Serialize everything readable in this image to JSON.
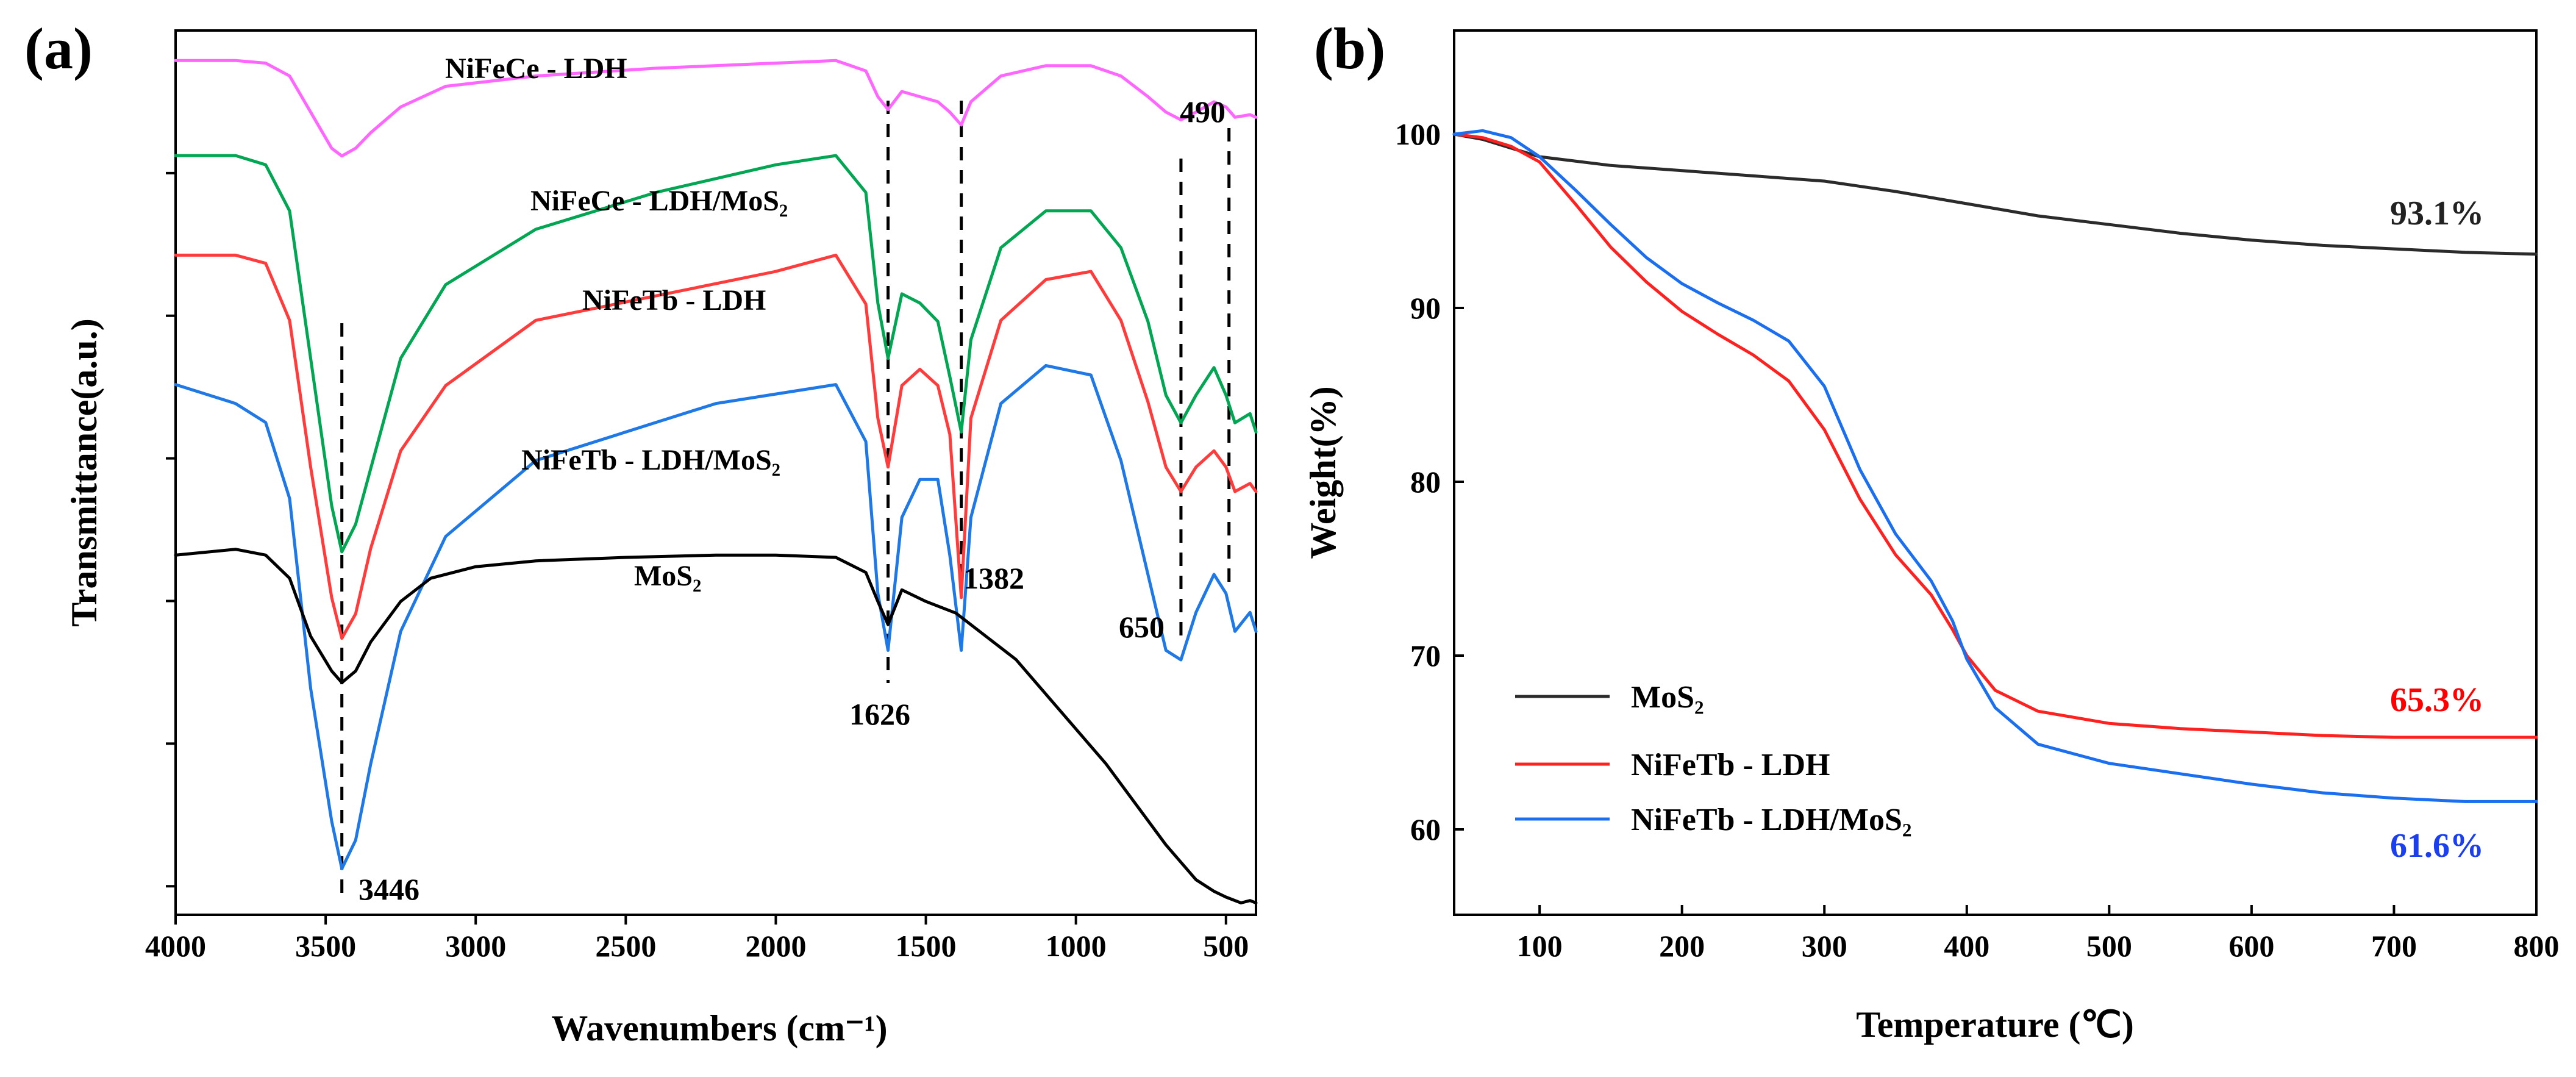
{
  "chart_data": [
    {
      "panel": "(a)",
      "type": "line",
      "title": "",
      "xlabel": "Wavenumbers (cm⁻¹)",
      "ylabel": "Transmittance(a.u.)",
      "xlim": [
        4000,
        400
      ],
      "x_ticks": [
        4000,
        3500,
        3000,
        2500,
        2000,
        1500,
        1000,
        500
      ],
      "y_ticks_labeled": false,
      "peaks": [
        {
          "label": "3446",
          "x": 3446
        },
        {
          "label": "1626",
          "x": 1626
        },
        {
          "label": "1382",
          "x": 1382
        },
        {
          "label": "650",
          "x": 650
        },
        {
          "label": "490",
          "x": 490
        }
      ],
      "series": [
        {
          "name": "NiFeCe - LDH",
          "color": "#ff66ff",
          "x": [
            4000,
            3800,
            3700,
            3620,
            3550,
            3480,
            3446,
            3400,
            3350,
            3250,
            3100,
            2800,
            2400,
            2000,
            1800,
            1700,
            1660,
            1626,
            1580,
            1520,
            1460,
            1420,
            1382,
            1350,
            1250,
            1100,
            950,
            850,
            760,
            700,
            650,
            600,
            540,
            500,
            470,
            420,
            400
          ],
          "y": [
            94,
            94,
            93.5,
            91,
            84,
            77,
            75.5,
            77,
            80,
            85,
            89,
            91,
            92.5,
            93.5,
            94,
            92,
            87,
            84.5,
            88,
            87,
            86,
            84,
            81.5,
            86,
            91,
            93,
            93,
            91,
            87,
            84,
            82.5,
            84,
            86,
            85,
            83,
            83.5,
            83
          ]
        },
        {
          "name": "NiFeCe - LDH/MoS₂",
          "color": "#00a651",
          "x": [
            4000,
            3800,
            3700,
            3620,
            3550,
            3480,
            3446,
            3400,
            3350,
            3250,
            3100,
            2800,
            2400,
            2000,
            1800,
            1700,
            1660,
            1626,
            1580,
            1520,
            1460,
            1420,
            1382,
            1350,
            1250,
            1100,
            950,
            850,
            760,
            700,
            650,
            600,
            540,
            500,
            470,
            420,
            400
          ],
          "y": [
            87,
            87,
            86.5,
            84,
            76,
            68,
            65.5,
            67,
            70,
            76,
            80,
            83,
            85,
            86.5,
            87,
            85,
            79,
            76,
            79.5,
            79,
            78,
            75,
            72,
            77,
            82,
            84,
            84,
            82,
            78,
            74,
            72.5,
            74,
            75.5,
            74,
            72.5,
            73,
            72
          ]
        },
        {
          "name": "NiFeTb - LDH",
          "color": "#ff3b3b",
          "x": [
            4000,
            3800,
            3700,
            3620,
            3550,
            3480,
            3446,
            3400,
            3350,
            3250,
            3100,
            2800,
            2400,
            2000,
            1800,
            1700,
            1660,
            1626,
            1580,
            1520,
            1460,
            1420,
            1382,
            1350,
            1250,
            1100,
            950,
            850,
            760,
            700,
            650,
            600,
            540,
            500,
            470,
            420,
            400
          ],
          "y": [
            81,
            81,
            80.5,
            77,
            68,
            60,
            57.5,
            59,
            63,
            69,
            73,
            77,
            78.5,
            80,
            81,
            78,
            71,
            68,
            73,
            74,
            73,
            70,
            60,
            71,
            77,
            79.5,
            80,
            77,
            72,
            68,
            66.5,
            68,
            69,
            68,
            66.5,
            67,
            66.5
          ]
        },
        {
          "name": "NiFeTb - LDH/MoS₂",
          "color": "#1e78e6",
          "x": [
            4000,
            3800,
            3700,
            3620,
            3550,
            3480,
            3446,
            3400,
            3350,
            3250,
            3100,
            2800,
            2400,
            2200,
            2000,
            1800,
            1700,
            1660,
            1626,
            1580,
            1520,
            1460,
            1420,
            1382,
            1350,
            1250,
            1100,
            950,
            850,
            760,
            700,
            650,
            600,
            540,
            500,
            470,
            420,
            400
          ],
          "y": [
            67,
            66,
            65,
            61,
            51,
            44,
            41.5,
            43,
            47,
            54,
            59,
            63,
            65,
            66,
            66.5,
            67,
            64,
            56,
            53,
            60,
            62,
            62,
            58,
            53,
            60,
            66,
            68,
            67.5,
            63,
            57,
            53,
            52.5,
            55,
            57,
            56,
            54,
            55,
            54
          ]
        },
        {
          "name": "MoS₂",
          "color": "#000000",
          "x": [
            4000,
            3800,
            3700,
            3620,
            3550,
            3480,
            3446,
            3400,
            3350,
            3250,
            3150,
            3000,
            2800,
            2500,
            2200,
            2000,
            1800,
            1700,
            1660,
            1626,
            1580,
            1500,
            1400,
            1300,
            1200,
            1100,
            1000,
            900,
            800,
            700,
            600,
            540,
            500,
            450,
            420,
            400
          ],
          "y": [
            58,
            58.5,
            58,
            56,
            51,
            48,
            47,
            48,
            50.5,
            54,
            56,
            57,
            57.5,
            57.8,
            58,
            58,
            57.8,
            56.5,
            54,
            52,
            55,
            54,
            53,
            51,
            49,
            46,
            43,
            40,
            36.5,
            33,
            30,
            29,
            28.5,
            28,
            28.2,
            28
          ]
        }
      ]
    },
    {
      "panel": "(b)",
      "type": "line",
      "title": "",
      "xlabel": "Temperature (℃)",
      "ylabel": "Weight(%)",
      "xlim": [
        40,
        800
      ],
      "ylim": [
        55,
        105
      ],
      "x_ticks": [
        100,
        200,
        300,
        400,
        500,
        600,
        700,
        800
      ],
      "y_ticks": [
        60,
        70,
        80,
        90,
        100
      ],
      "legend_position": "bottom-left",
      "end_labels": [
        {
          "label": "93.1%",
          "series": "MoS₂",
          "color": "#222222"
        },
        {
          "label": "65.3%",
          "series": "NiFeTb - LDH",
          "color": "#ff0000"
        },
        {
          "label": "61.6%",
          "series": "NiFeTb - LDH/MoS₂",
          "color": "#1a3ff0"
        }
      ],
      "series": [
        {
          "name": "MoS₂",
          "color": "#2b2b2b",
          "x": [
            40,
            60,
            80,
            100,
            150,
            200,
            250,
            300,
            350,
            400,
            450,
            500,
            550,
            600,
            650,
            700,
            750,
            800
          ],
          "y": [
            100,
            99.7,
            99.2,
            98.7,
            98.2,
            97.9,
            97.6,
            97.3,
            96.7,
            96.0,
            95.3,
            94.8,
            94.3,
            93.9,
            93.6,
            93.4,
            93.2,
            93.1
          ]
        },
        {
          "name": "NiFeTb - LDH",
          "color": "#ff2020",
          "x": [
            40,
            60,
            80,
            100,
            125,
            150,
            175,
            200,
            225,
            250,
            275,
            300,
            325,
            350,
            375,
            390,
            400,
            420,
            450,
            500,
            550,
            600,
            650,
            700,
            750,
            800
          ],
          "y": [
            100,
            99.8,
            99.3,
            98.4,
            96,
            93.5,
            91.5,
            89.8,
            88.5,
            87.3,
            85.8,
            83,
            79,
            75.8,
            73.5,
            71.5,
            70,
            68,
            66.8,
            66.1,
            65.8,
            65.6,
            65.4,
            65.3,
            65.3,
            65.3
          ]
        },
        {
          "name": "NiFeTb - LDH/MoS₂",
          "color": "#1a6ff0",
          "x": [
            40,
            60,
            80,
            100,
            125,
            150,
            175,
            200,
            225,
            250,
            275,
            300,
            325,
            350,
            375,
            390,
            400,
            420,
            450,
            500,
            550,
            600,
            650,
            700,
            750,
            800
          ],
          "y": [
            100,
            100.2,
            99.8,
            98.7,
            96.8,
            94.8,
            92.9,
            91.4,
            90.3,
            89.3,
            88.1,
            85.5,
            80.7,
            77,
            74.3,
            72,
            69.8,
            67,
            64.9,
            63.8,
            63.2,
            62.6,
            62.1,
            61.8,
            61.6,
            61.6
          ]
        }
      ]
    }
  ]
}
